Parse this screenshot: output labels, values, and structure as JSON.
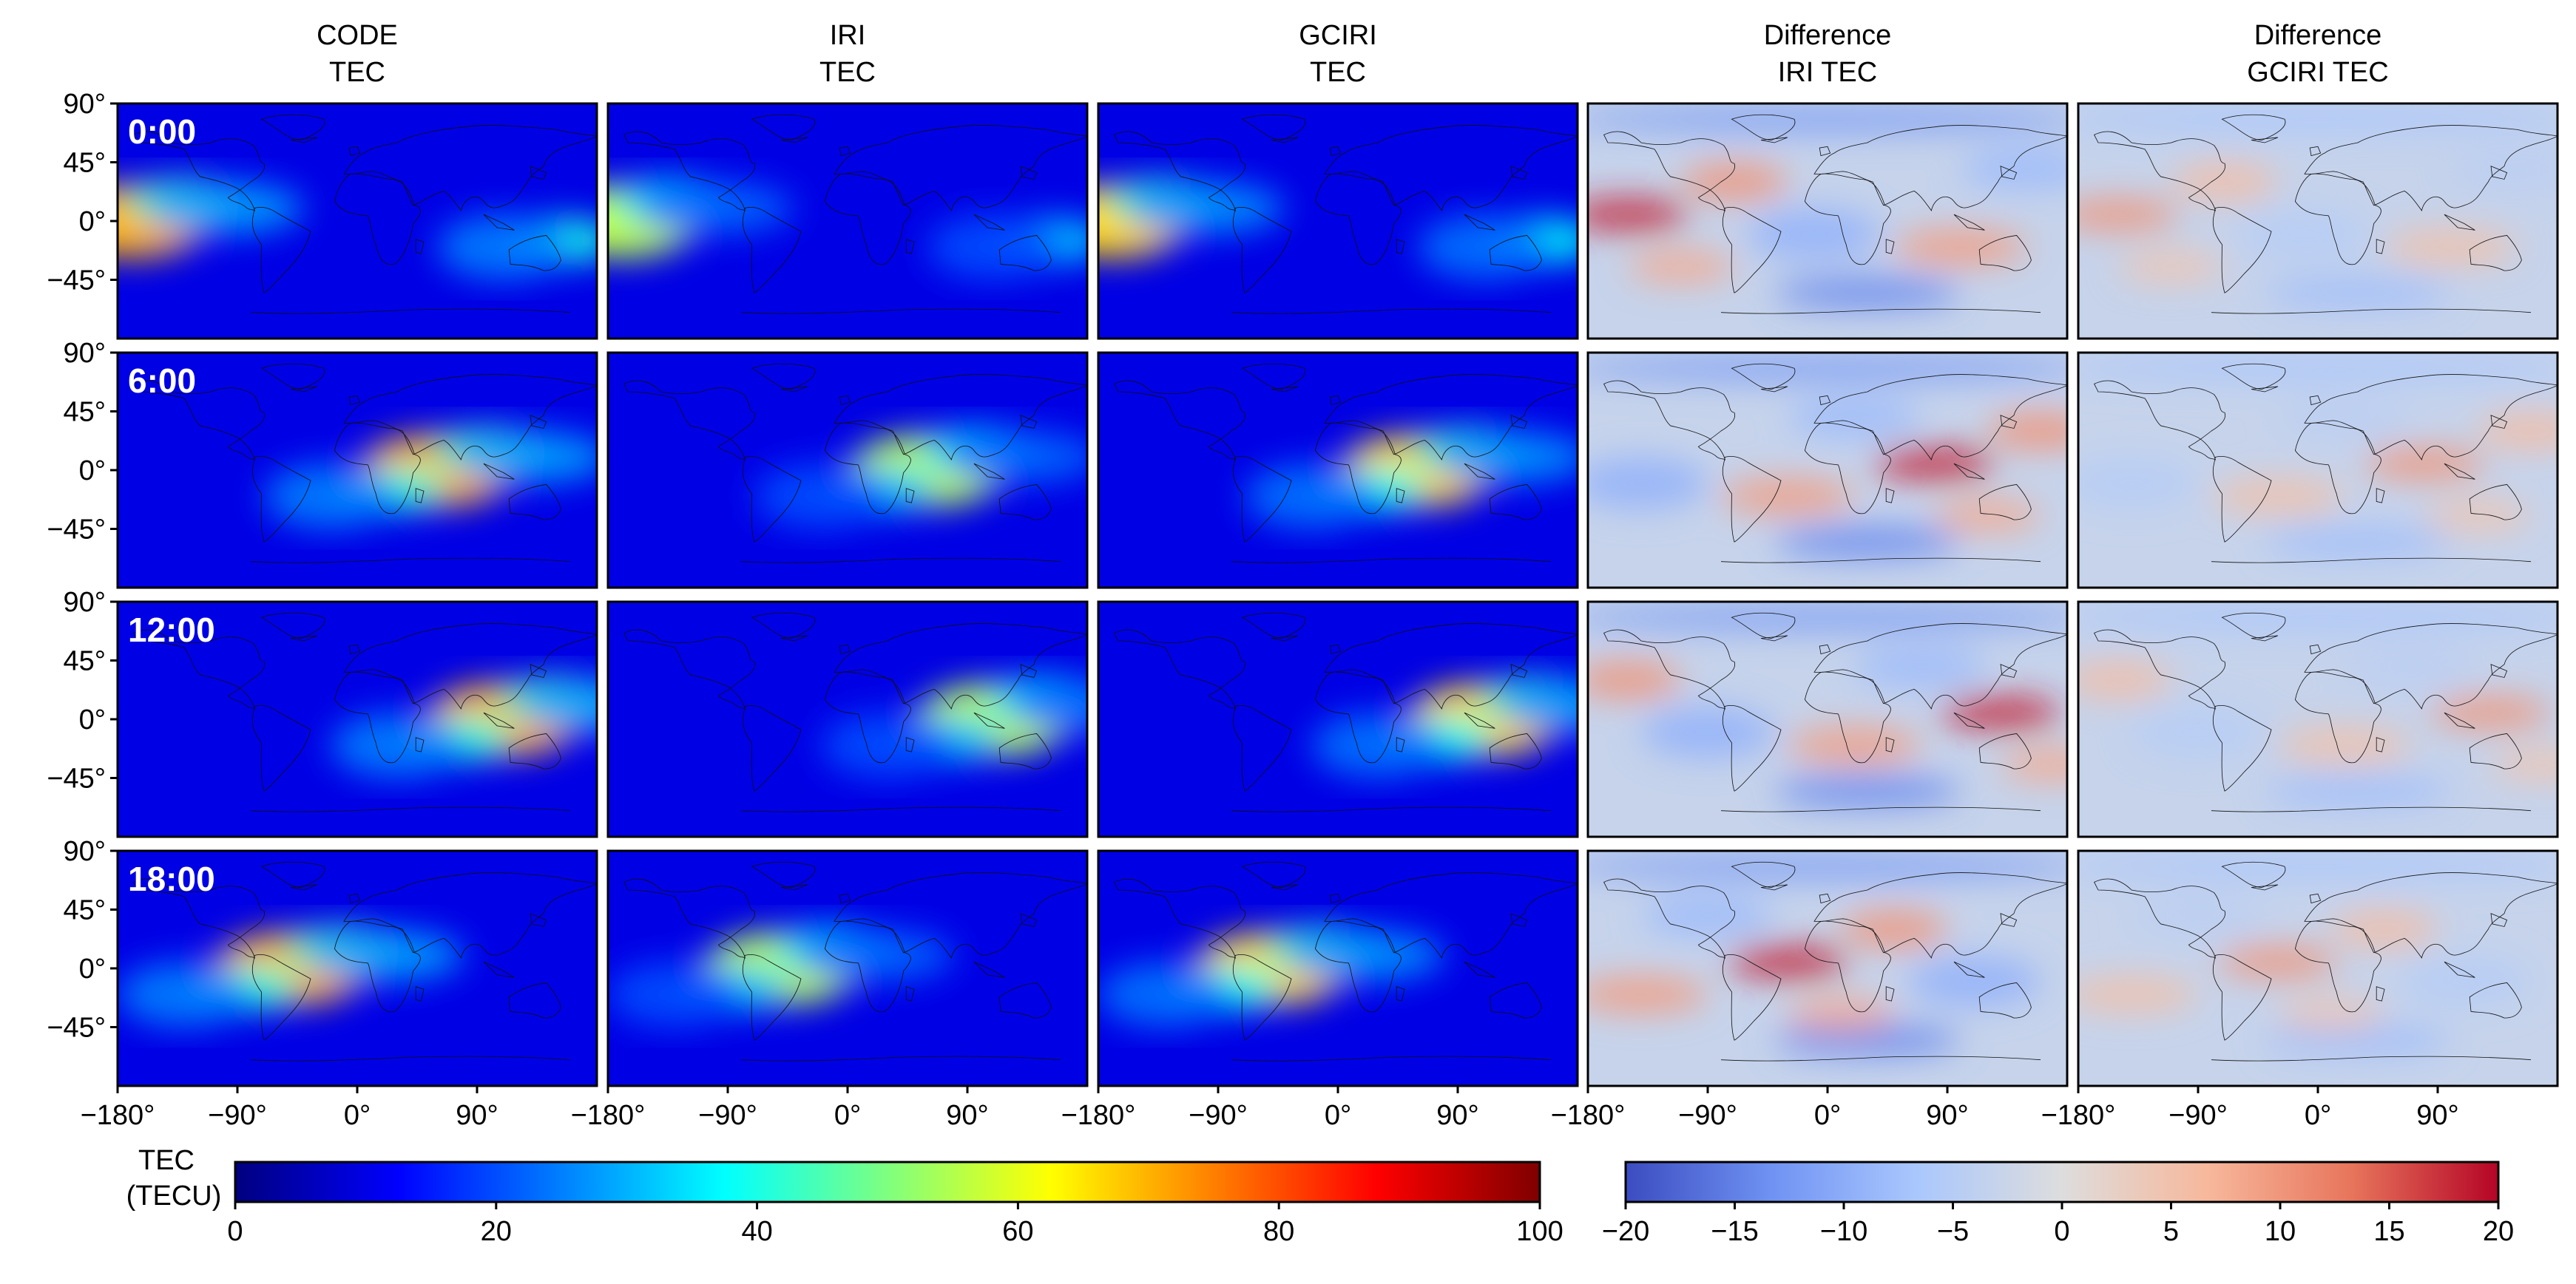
{
  "chart_data": {
    "type": "heatmap",
    "columns": [
      {
        "title_line1": "CODE",
        "title_line2": "TEC",
        "scale": "tec"
      },
      {
        "title_line1": "IRI",
        "title_line2": "TEC",
        "scale": "tec"
      },
      {
        "title_line1": "GCIRI",
        "title_line2": "TEC",
        "scale": "tec"
      },
      {
        "title_line1": "Difference",
        "title_line2": "IRI TEC",
        "scale": "diff"
      },
      {
        "title_line1": "Difference",
        "title_line2": "GCIRI TEC",
        "scale": "diff"
      }
    ],
    "rows": [
      {
        "label": "0:00",
        "utc_hour": 0
      },
      {
        "label": "6:00",
        "utc_hour": 6
      },
      {
        "label": "12:00",
        "utc_hour": 12
      },
      {
        "label": "18:00",
        "utc_hour": 18
      }
    ],
    "lat_ticks": [
      "90°",
      "45°",
      "0°",
      "−45°"
    ],
    "lat_tick_values": [
      90,
      45,
      0,
      -45
    ],
    "lon_ticks": [
      "−180°",
      "−90°",
      "0°",
      "90°"
    ],
    "lon_tick_values": [
      -180,
      -90,
      0,
      90
    ],
    "xlim": [
      -180,
      180
    ],
    "ylim": [
      -90,
      90
    ],
    "colorbar_tec": {
      "label_line1": "TEC",
      "label_line2": "(TECU)",
      "range": [
        0,
        100
      ],
      "tick_labels": [
        "0",
        "20",
        "40",
        "60",
        "80",
        "100"
      ],
      "tick_values": [
        0,
        20,
        40,
        60,
        80,
        100
      ],
      "colormap": "jet",
      "stops": [
        "#00007f",
        "#0000ff",
        "#007fff",
        "#00ffff",
        "#7fff7f",
        "#ffff00",
        "#ff7f00",
        "#ff0000",
        "#7f0000"
      ]
    },
    "colorbar_diff": {
      "range": [
        -20,
        20
      ],
      "tick_labels": [
        "−20",
        "−15",
        "−10",
        "−5",
        "0",
        "5",
        "10",
        "15",
        "20"
      ],
      "tick_values": [
        -20,
        -15,
        -10,
        -5,
        0,
        5,
        10,
        15,
        20
      ],
      "colormap": "coolwarm",
      "stops": [
        "#3b4cc0",
        "#6f92f3",
        "#aac7fd",
        "#dddddd",
        "#f7b89c",
        "#e7745b",
        "#b40426"
      ]
    }
  }
}
